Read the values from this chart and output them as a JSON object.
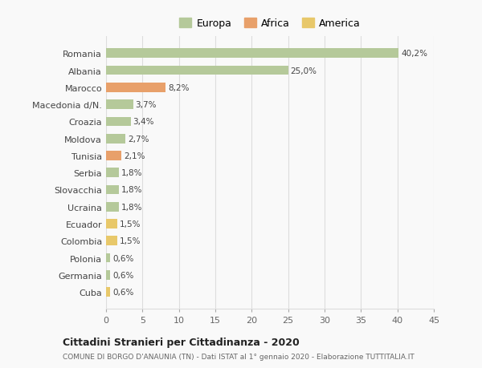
{
  "categories": [
    "Cuba",
    "Germania",
    "Polonia",
    "Colombia",
    "Ecuador",
    "Ucraina",
    "Slovacchia",
    "Serbia",
    "Tunisia",
    "Moldova",
    "Croazia",
    "Macedonia d/N.",
    "Marocco",
    "Albania",
    "Romania"
  ],
  "values": [
    0.6,
    0.6,
    0.6,
    1.5,
    1.5,
    1.8,
    1.8,
    1.8,
    2.1,
    2.7,
    3.4,
    3.7,
    8.2,
    25.0,
    40.2
  ],
  "colors": [
    "#e8c86a",
    "#b5c99a",
    "#b5c99a",
    "#e8c86a",
    "#e8c86a",
    "#b5c99a",
    "#b5c99a",
    "#b5c99a",
    "#e8a06a",
    "#b5c99a",
    "#b5c99a",
    "#b5c99a",
    "#e8a06a",
    "#b5c99a",
    "#b5c99a"
  ],
  "labels": [
    "0,6%",
    "0,6%",
    "0,6%",
    "1,5%",
    "1,5%",
    "1,8%",
    "1,8%",
    "1,8%",
    "2,1%",
    "2,7%",
    "3,4%",
    "3,7%",
    "8,2%",
    "25,0%",
    "40,2%"
  ],
  "legend": [
    {
      "label": "Europa",
      "color": "#b5c99a"
    },
    {
      "label": "Africa",
      "color": "#e8a06a"
    },
    {
      "label": "America",
      "color": "#e8c86a"
    }
  ],
  "xlim": [
    0,
    45
  ],
  "xticks": [
    0,
    5,
    10,
    15,
    20,
    25,
    30,
    35,
    40,
    45
  ],
  "title": "Cittadini Stranieri per Cittadinanza - 2020",
  "subtitle": "COMUNE DI BORGO D'ANAUNIA (TN) - Dati ISTAT al 1° gennaio 2020 - Elaborazione TUTTITALIA.IT",
  "background_color": "#f9f9f9",
  "grid_color": "#dddddd",
  "bar_height": 0.55
}
